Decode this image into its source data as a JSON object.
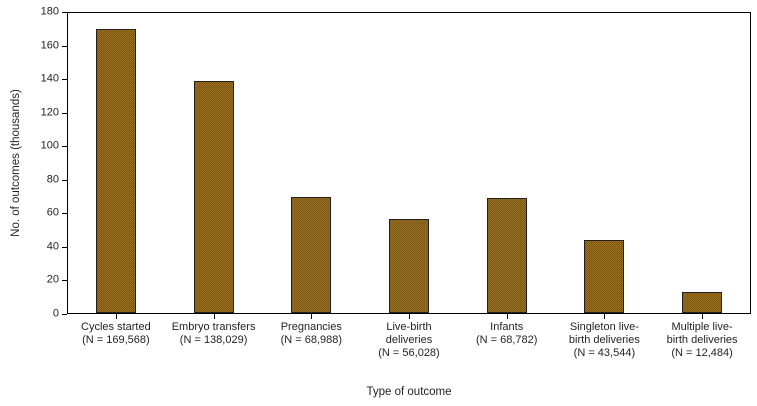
{
  "chart_data": {
    "type": "bar",
    "title": "",
    "xlabel": "Type of outcome",
    "ylabel": "No. of outcomes (thousands)",
    "ylim": [
      0,
      180
    ],
    "yticks": [
      0,
      20,
      40,
      60,
      80,
      100,
      120,
      140,
      160,
      180
    ],
    "grid": false,
    "legend": "none",
    "bar_fill": "#8f671d",
    "bar_fill_dot": "#a37321",
    "bar_fill_dark": "#7c5a16",
    "bar_border": "#231f20",
    "axis_color": "#000000",
    "categories": [
      {
        "label_lines": [
          "Cycles started",
          "(N = 169,568)"
        ],
        "value": 169.568
      },
      {
        "label_lines": [
          "Embryo transfers",
          "(N = 138,029)"
        ],
        "value": 138.029
      },
      {
        "label_lines": [
          "Pregnancies",
          "(N = 68,988)"
        ],
        "value": 68.988
      },
      {
        "label_lines": [
          "Live-birth",
          "deliveries",
          "(N = 56,028)"
        ],
        "value": 56.028
      },
      {
        "label_lines": [
          "Infants",
          "(N = 68,782)"
        ],
        "value": 68.782
      },
      {
        "label_lines": [
          "Singleton live-",
          "birth deliveries",
          "(N = 43,544)"
        ],
        "value": 43.544
      },
      {
        "label_lines": [
          "Multiple live-",
          "birth deliveries",
          "(N = 12,484)"
        ],
        "value": 12.484
      }
    ]
  }
}
